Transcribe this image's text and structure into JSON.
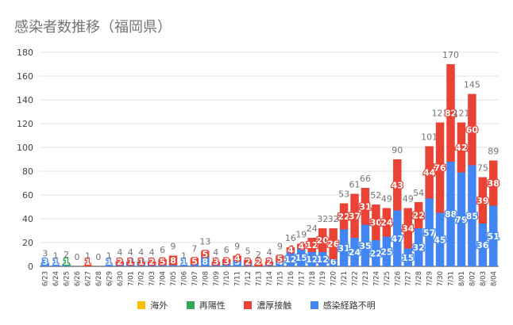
{
  "title": "感染者数推移（福岡県）",
  "chart_data": {
    "type": "bar",
    "stacked": true,
    "ylim": [
      0,
      180
    ],
    "yticks": [
      0,
      20,
      40,
      60,
      80,
      100,
      120,
      140,
      160,
      180
    ],
    "grid": true,
    "legend_position": "bottom",
    "categories": [
      "6/23",
      "6/24",
      "6/25",
      "6/26",
      "6/27",
      "6/28",
      "6/29",
      "6/30",
      "7/01",
      "7/02",
      "7/03",
      "7/04",
      "7/05",
      "7/06",
      "7/07",
      "7/08",
      "7/09",
      "7/10",
      "7/11",
      "7/12",
      "7/13",
      "7/14",
      "7/15",
      "7/16",
      "7/17",
      "7/18",
      "7/19",
      "7/20",
      "7/21",
      "7/22",
      "7/23",
      "7/24",
      "7/25",
      "7/26",
      "7/27",
      "7/28",
      "7/29",
      "7/30",
      "7/31",
      "8/01",
      "8/02",
      "8/03",
      "8/04"
    ],
    "totals": [
      3,
      1,
      2,
      0,
      1,
      0,
      1,
      4,
      4,
      4,
      4,
      6,
      9,
      1,
      7,
      13,
      4,
      6,
      9,
      5,
      2,
      4,
      9,
      16,
      19,
      24,
      32,
      32,
      53,
      61,
      66,
      52,
      49,
      90,
      49,
      54,
      101,
      121,
      170,
      121,
      145,
      75,
      89
    ],
    "series": [
      {
        "name": "海外",
        "color": "#fbbc04",
        "values": [
          0,
          0,
          0,
          0,
          0,
          0,
          0,
          0,
          0,
          0,
          0,
          0,
          0,
          0,
          0,
          0,
          0,
          0,
          0,
          0,
          0,
          0,
          0,
          0,
          0,
          0,
          0,
          0,
          0,
          0,
          0,
          0,
          0,
          0,
          0,
          0,
          0,
          0,
          0,
          0,
          0,
          0,
          0
        ]
      },
      {
        "name": "再陽性",
        "color": "#34a853",
        "values": [
          0,
          0,
          1,
          0,
          0,
          0,
          0,
          0,
          0,
          0,
          0,
          0,
          0,
          0,
          0,
          0,
          0,
          0,
          0,
          0,
          0,
          0,
          0,
          0,
          0,
          0,
          0,
          0,
          0,
          0,
          0,
          0,
          0,
          0,
          0,
          0,
          0,
          0,
          0,
          0,
          0,
          0,
          0
        ]
      },
      {
        "name": "濃厚接触",
        "color": "#ea4335",
        "values": [
          0,
          0,
          0,
          0,
          1,
          0,
          0,
          2,
          1,
          1,
          2,
          5,
          8,
          0,
          5,
          5,
          3,
          3,
          4,
          2,
          2,
          2,
          5,
          4,
          4,
          12,
          20,
          26,
          22,
          37,
          31,
          30,
          24,
          43,
          34,
          22,
          44,
          76,
          82,
          42,
          60,
          39,
          38
        ]
      },
      {
        "name": "感染経路不明",
        "color": "#4285f4",
        "values": [
          3,
          1,
          1,
          0,
          0,
          0,
          1,
          2,
          3,
          3,
          2,
          1,
          1,
          1,
          2,
          8,
          1,
          3,
          5,
          3,
          0,
          2,
          4,
          12,
          15,
          12,
          12,
          6,
          31,
          24,
          35,
          22,
          25,
          47,
          15,
          32,
          57,
          45,
          88,
          79,
          85,
          36,
          51
        ]
      }
    ],
    "seg_labels": {
      "濃厚接触": [
        null,
        null,
        null,
        null,
        "1",
        null,
        null,
        "2",
        "1",
        "1",
        "2",
        "5",
        "8",
        null,
        "5",
        "5",
        "3",
        "3",
        "4",
        "2",
        "2",
        "2",
        "5",
        "4",
        "4",
        "12",
        "20",
        "26",
        "22",
        "37",
        "31",
        "30",
        "24",
        "43",
        "34",
        "22",
        "44",
        "76",
        "82",
        "42",
        "60",
        "39",
        "38"
      ],
      "感染経路不明": [
        "3",
        "1",
        "1",
        null,
        null,
        null,
        "1",
        "2",
        "3",
        "3",
        "2",
        "1",
        "1",
        "1",
        "2",
        "8",
        "1",
        "3",
        "5",
        "3",
        null,
        "2",
        "4",
        "12",
        "15",
        "12",
        "12",
        "6",
        "31",
        "24",
        "35",
        "22",
        "25",
        "47",
        "15",
        "32",
        "57",
        "45",
        "88",
        "79",
        "85",
        "36",
        "51"
      ],
      "再陽性": [
        null,
        null,
        "1",
        null,
        null,
        null,
        null,
        null,
        null,
        null,
        null,
        null,
        null,
        null,
        null,
        null,
        null,
        null,
        null,
        null,
        null,
        null,
        null,
        null,
        null,
        null,
        null,
        null,
        null,
        null,
        null,
        null,
        null,
        null,
        null,
        null,
        null,
        null,
        null,
        null,
        null,
        null,
        null
      ]
    }
  },
  "legend": [
    {
      "label": "海外",
      "color": "#fbbc04"
    },
    {
      "label": "再陽性",
      "color": "#34a853"
    },
    {
      "label": "濃厚接触",
      "color": "#ea4335"
    },
    {
      "label": "感染経路不明",
      "color": "#4285f4"
    }
  ]
}
